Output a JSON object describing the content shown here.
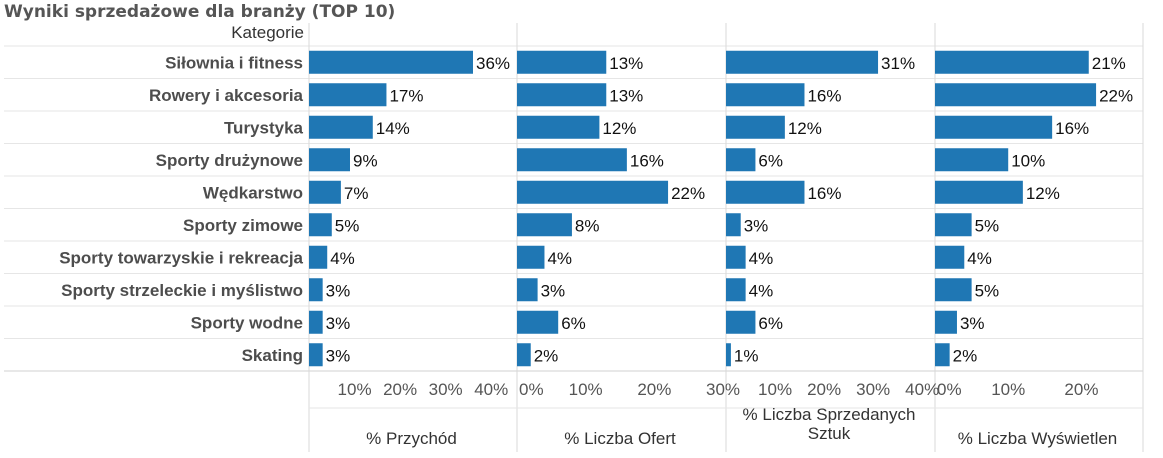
{
  "chart_data": {
    "type": "bar",
    "orientation": "horizontal",
    "title": "Wyniki sprzedażowe dla branży (TOP 10)",
    "category_header": "Kategorie",
    "categories": [
      "Siłownia i fitness",
      "Rowery i akcesoria",
      "Turystyka",
      "Sporty drużynowe",
      "Wędkarstwo",
      "Sporty zimowe",
      "Sporty towarzyskie i rekreacja",
      "Sporty strzeleckie i myślistwo",
      "Sporty wodne",
      "Skating"
    ],
    "bar_color": "#1f77b4",
    "grid": true,
    "panels": [
      {
        "name": "% Przychód",
        "axis_title_lines": [
          "% Przychód"
        ],
        "values": [
          36,
          17,
          14,
          9,
          7,
          5,
          4,
          3,
          3,
          3
        ],
        "xlim": [
          0,
          45
        ],
        "ticks": [
          10,
          20,
          30,
          40
        ],
        "tick_labels": [
          "10%",
          "20%",
          "30%",
          "40%"
        ]
      },
      {
        "name": "%  Liczba Ofert",
        "axis_title_lines": [
          "%  Liczba Ofert"
        ],
        "values": [
          13,
          13,
          12,
          16,
          22,
          8,
          4,
          3,
          6,
          2
        ],
        "xlim": [
          0,
          30
        ],
        "ticks": [
          0,
          10,
          20,
          30
        ],
        "tick_labels": [
          "0%",
          "10%",
          "20%",
          "30%"
        ]
      },
      {
        "name": "% Liczba Sprzedanych Sztuk",
        "axis_title_lines": [
          "% Liczba Sprzedanych",
          "Sztuk"
        ],
        "values": [
          31,
          16,
          12,
          6,
          16,
          3,
          4,
          4,
          6,
          1
        ],
        "xlim": [
          0,
          42
        ],
        "ticks": [
          10,
          20,
          30,
          40
        ],
        "tick_labels": [
          "10%",
          "20%",
          "30%",
          "40%"
        ]
      },
      {
        "name": "% Liczba Wyświetlen",
        "axis_title_lines": [
          "% Liczba Wyświetlen"
        ],
        "values": [
          21,
          22,
          16,
          10,
          12,
          5,
          4,
          5,
          3,
          2
        ],
        "xlim": [
          0,
          28
        ],
        "ticks": [
          0,
          10,
          20
        ],
        "tick_labels": [
          "0%",
          "10%",
          "20%"
        ]
      }
    ]
  }
}
